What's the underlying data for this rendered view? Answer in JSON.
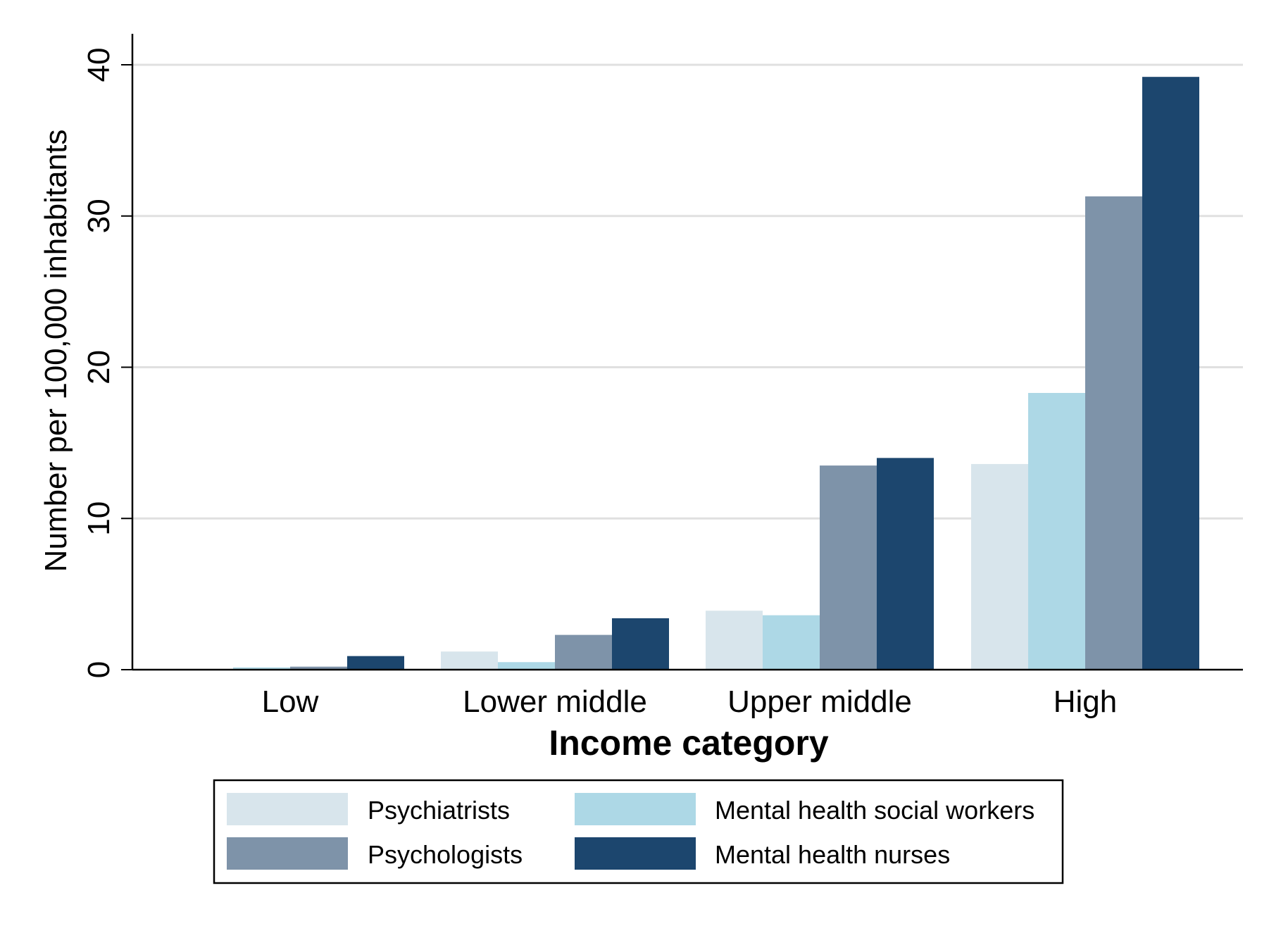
{
  "chart_data": {
    "type": "bar",
    "title": "",
    "xlabel": "Income category",
    "ylabel": "Number per 100,000 inhabitants",
    "ylim": [
      0,
      40
    ],
    "yticks": [
      0,
      10,
      20,
      30,
      40
    ],
    "grid": true,
    "legend_position": "bottom",
    "categories": [
      "Low",
      "Lower middle",
      "Upper middle",
      "High"
    ],
    "series": [
      {
        "name": "Psychiatrists",
        "color": "#D8E5EC",
        "values": [
          0.05,
          1.2,
          3.9,
          13.6
        ]
      },
      {
        "name": "Mental health social workers",
        "color": "#ADD8E6",
        "values": [
          0.15,
          0.5,
          3.6,
          18.3
        ]
      },
      {
        "name": "Psychologists",
        "color": "#7E93A9",
        "values": [
          0.2,
          2.3,
          13.5,
          31.3
        ]
      },
      {
        "name": "Mental health nurses",
        "color": "#1C466E",
        "values": [
          0.9,
          3.4,
          14.0,
          39.2
        ]
      }
    ]
  }
}
